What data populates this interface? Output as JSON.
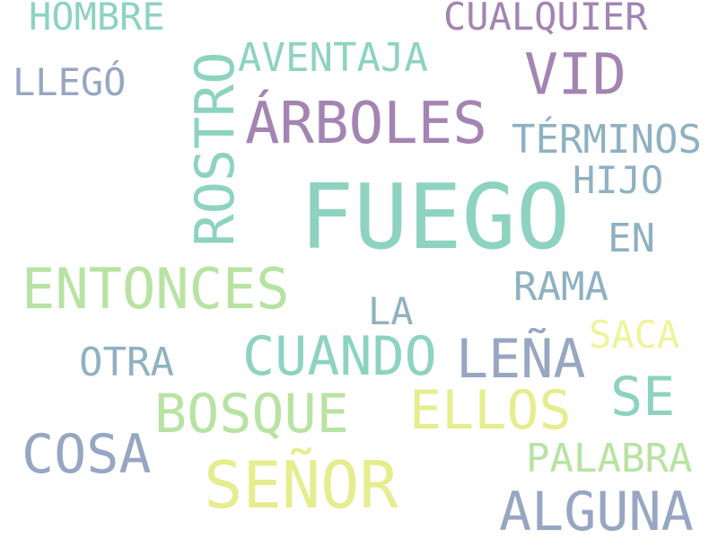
{
  "cloud": {
    "words": {
      "fuego": "FUEGO",
      "senor": "SEÑOR",
      "arboles": "ÁRBOLES",
      "vid": "VID",
      "rostro": "ROSTRO",
      "entonces": "ENTONCES",
      "cuando": "CUANDO",
      "lena": "LEÑA",
      "bosque": "BOSQUE",
      "ellos": "ELLOS",
      "cosa": "COSA",
      "alguna": "ALGUNA",
      "se": "SE",
      "hombre": "HOMBRE",
      "cualquier": "CUALQUIER",
      "aventaja": "AVENTAJA",
      "llego": "LLEGÓ",
      "terminos": "TÉRMINOS",
      "hijo": "HIJO",
      "en": "EN",
      "rama": "RAMA",
      "la": "LA",
      "saca": "SACA",
      "otra": "OTRA",
      "palabra": "PALABRA"
    },
    "colors": {
      "mint": "#8dd3c0",
      "purple": "#a384b2",
      "slate": "#97a6c2",
      "light_green": "#b8e3a3",
      "yellow": "#e6ed8f",
      "steel_blue": "#8fb1c2",
      "pale_yellow": "#eef49a"
    }
  }
}
